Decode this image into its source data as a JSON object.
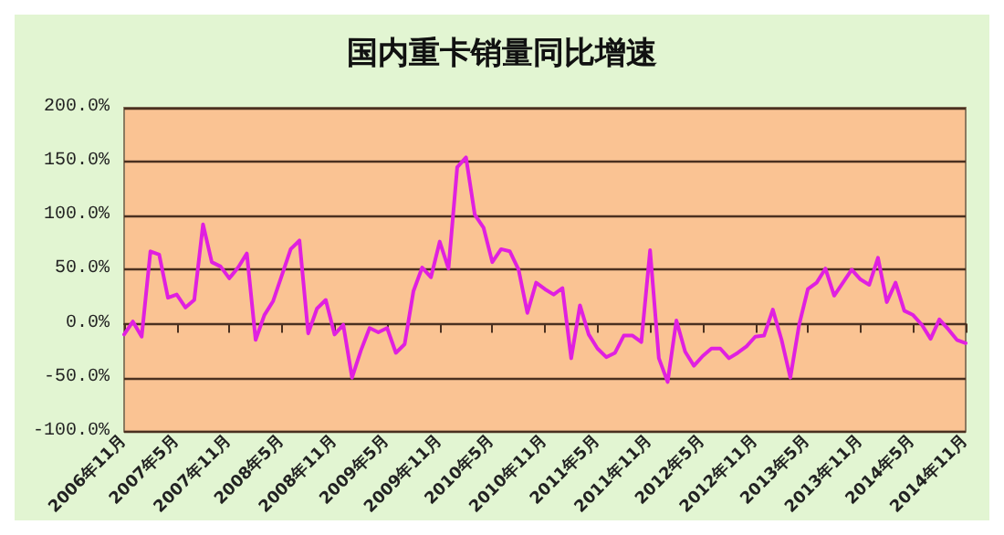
{
  "chart_data": {
    "type": "line",
    "title": "国内重卡销量同比增速",
    "categories": [
      "2006年11月",
      null,
      null,
      null,
      null,
      null,
      "2007年5月",
      null,
      null,
      null,
      null,
      null,
      "2007年11月",
      null,
      null,
      null,
      null,
      null,
      "2008年5月",
      null,
      null,
      null,
      null,
      null,
      "2008年11月",
      null,
      null,
      null,
      null,
      null,
      "2009年5月",
      null,
      null,
      null,
      null,
      null,
      "2009年11月",
      null,
      null,
      null,
      null,
      null,
      "2010年5月",
      null,
      null,
      null,
      null,
      null,
      "2010年11月",
      null,
      null,
      null,
      null,
      null,
      "2011年5月",
      null,
      null,
      null,
      null,
      null,
      "2011年11月",
      null,
      null,
      null,
      null,
      null,
      "2012年5月",
      null,
      null,
      null,
      null,
      null,
      "2012年11月",
      null,
      null,
      null,
      null,
      null,
      "2013年5月",
      null,
      null,
      null,
      null,
      null,
      "2013年11月",
      null,
      null,
      null,
      null,
      null,
      "2014年5月",
      null,
      null,
      null,
      null,
      null,
      "2014年11月"
    ],
    "values": [
      -10,
      2,
      -12,
      67,
      64,
      24,
      27,
      15,
      22,
      92,
      57,
      53,
      42,
      52,
      65,
      -15,
      8,
      21,
      45,
      69,
      77,
      -9,
      14,
      22,
      -10,
      -1,
      -50,
      -25,
      -4,
      -8,
      -4,
      -27,
      -19,
      30,
      52,
      43,
      76,
      51,
      145,
      154,
      101,
      89,
      57,
      69,
      67,
      50,
      10,
      38,
      32,
      27,
      33,
      -32,
      17,
      -10,
      -23,
      -31,
      -27,
      -11,
      -11,
      -17,
      68,
      -32,
      -54,
      3,
      -26,
      -39,
      -30,
      -23,
      -23,
      -32,
      -27,
      -21,
      -12,
      -11,
      13,
      -15,
      -50,
      -1,
      32,
      38,
      51,
      26,
      38,
      50,
      41,
      36,
      61,
      20,
      38,
      12,
      8,
      -1,
      -14,
      4,
      -5,
      -15,
      -18
    ],
    "color": "#e020e0",
    "ylim": [
      -100,
      200
    ],
    "yticks": [
      {
        "value": -100,
        "label": "-100.0%"
      },
      {
        "value": -50,
        "label": "-50.0%"
      },
      {
        "value": 0,
        "label": "0.0%"
      },
      {
        "value": 50,
        "label": "50.0%"
      },
      {
        "value": 100,
        "label": "100.0%"
      },
      {
        "value": 150,
        "label": "150.0%"
      },
      {
        "value": 200,
        "label": "200.0%"
      }
    ],
    "grid": "y",
    "marker": "none",
    "line_style": "solid"
  }
}
